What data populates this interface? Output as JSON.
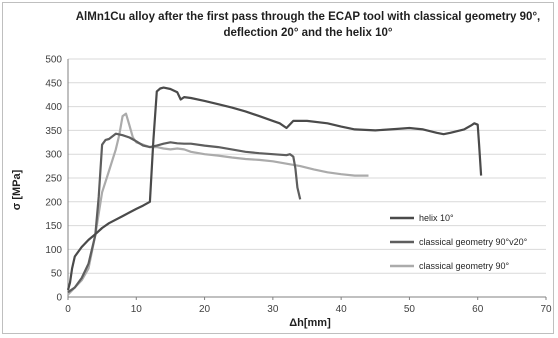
{
  "chart_data": {
    "type": "line",
    "title_line1": "AlMn1Cu alloy after the first pass through the ECAP tool  with classical geometry 90°,",
    "title_line2": "deflection 20° and the helix 10°",
    "xlabel": "Δh[mm]",
    "ylabel": "σ [MPa]",
    "xlim": [
      0,
      70
    ],
    "ylim": [
      0,
      500
    ],
    "xticks": [
      0,
      10,
      20,
      30,
      40,
      50,
      60,
      70
    ],
    "yticks": [
      0,
      50,
      100,
      150,
      200,
      250,
      300,
      350,
      400,
      450,
      500
    ],
    "grid": "horizontal",
    "legend_position": "right",
    "series": [
      {
        "name": "classical geometry 90°",
        "color": "#ababab",
        "x": [
          0,
          1,
          2,
          3,
          4,
          5,
          6,
          7,
          7.5,
          8,
          8.5,
          9,
          9.5,
          10,
          11,
          12,
          13,
          14,
          15,
          16,
          17,
          18,
          20,
          22,
          24,
          26,
          28,
          30,
          32,
          34,
          36,
          38,
          40,
          42,
          44
        ],
        "y": [
          5,
          20,
          35,
          60,
          130,
          220,
          265,
          310,
          340,
          380,
          385,
          360,
          335,
          325,
          320,
          315,
          315,
          312,
          310,
          312,
          310,
          305,
          300,
          297,
          293,
          290,
          288,
          285,
          280,
          275,
          268,
          262,
          258,
          255,
          255
        ]
      },
      {
        "name": "classical geometry 90°v20°",
        "color": "#5e5e5e",
        "x": [
          0,
          1,
          2,
          3,
          4,
          4.5,
          5,
          5.5,
          6,
          7,
          8,
          9,
          10,
          11,
          12,
          13,
          14,
          15,
          16,
          17,
          18,
          20,
          22,
          24,
          26,
          28,
          30,
          32,
          32.5,
          33,
          33.3,
          33.6,
          34
        ],
        "y": [
          10,
          20,
          40,
          70,
          130,
          210,
          320,
          330,
          332,
          343,
          340,
          335,
          327,
          318,
          315,
          318,
          322,
          325,
          323,
          322,
          322,
          318,
          315,
          310,
          305,
          302,
          300,
          298,
          300,
          295,
          270,
          230,
          205
        ]
      },
      {
        "name": "helix 10°",
        "color": "#4a4a4a",
        "x": [
          0,
          0.3,
          0.6,
          1,
          2,
          3,
          4,
          5,
          6,
          8,
          10,
          11,
          12,
          12.5,
          13,
          13.5,
          14,
          15,
          16,
          16.5,
          17,
          18,
          20,
          22,
          24,
          26,
          28,
          30,
          31,
          32,
          33,
          35,
          38,
          40,
          42,
          45,
          48,
          50,
          52,
          54,
          55,
          56,
          58,
          59,
          59.5,
          60,
          60.2,
          60.5
        ],
        "y": [
          15,
          30,
          60,
          85,
          105,
          120,
          132,
          145,
          155,
          170,
          185,
          192,
          200,
          330,
          432,
          438,
          440,
          437,
          430,
          415,
          420,
          418,
          412,
          405,
          398,
          390,
          380,
          370,
          365,
          355,
          370,
          370,
          365,
          358,
          352,
          350,
          353,
          355,
          352,
          345,
          342,
          345,
          352,
          360,
          365,
          362,
          320,
          255
        ]
      }
    ],
    "legend_order": [
      "helix 10°",
      "classical geometry 90°v20°",
      "classical geometry 90°"
    ]
  }
}
